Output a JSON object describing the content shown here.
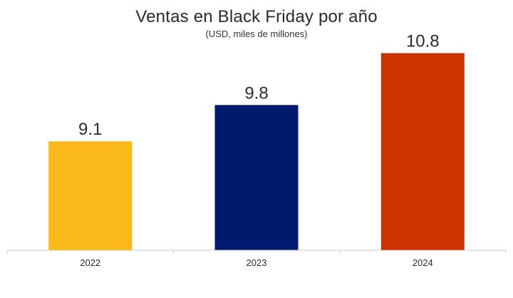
{
  "chart_data": {
    "type": "bar",
    "title": "Ventas en Black Friday por año",
    "subtitle": "(USD, miles de millones)",
    "categories": [
      "2022",
      "2023",
      "2024"
    ],
    "values": [
      9.1,
      9.8,
      10.8
    ],
    "bar_colors": [
      "#FBB91C",
      "#001A6E",
      "#CC3300"
    ],
    "value_labels": [
      "9.1",
      "9.8",
      "10.8"
    ],
    "xlabel": "",
    "ylabel": "",
    "ylim": [
      7.0,
      11.0
    ],
    "grid": false,
    "legend": "none",
    "axis_color": "#C8C8C8"
  }
}
